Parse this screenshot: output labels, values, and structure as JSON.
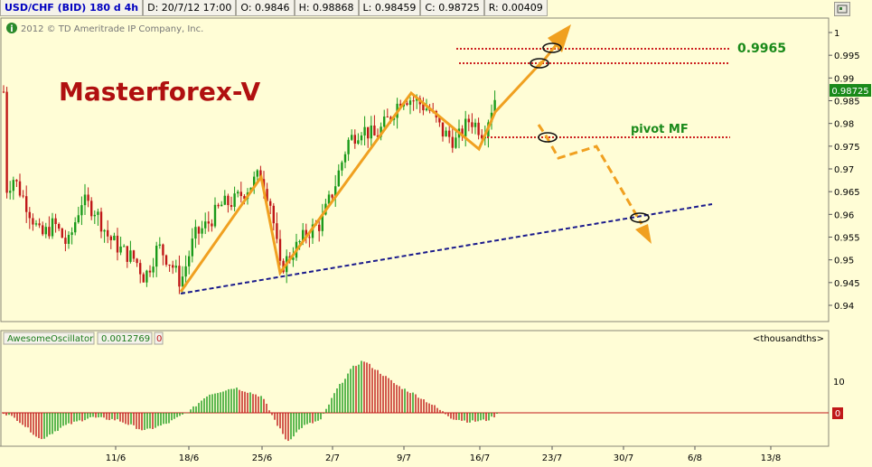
{
  "header": {
    "symbol": "USD/CHF (BID) 180 d 4h",
    "date": "D: 20/7/12 17:00",
    "open": "O: 0.9846",
    "high": "H: 0.98868",
    "low": "L: 0.98459",
    "close": "C: 0.98725",
    "range": "R: 0.00409"
  },
  "copyright": "2012 © TD Ameritrade IP Company, Inc.",
  "info_icon": "info-icon",
  "watermark": "Masterforex-V",
  "level_label": "0.9965",
  "pivot_label": "pivot MF",
  "last_price": "0.98725",
  "colors": {
    "up": "#1a9a1a",
    "down": "#c01818",
    "arrow": "#f0a020",
    "trend": "#1a1a8c",
    "level": "#cc2020",
    "bg": "#fffdd6"
  },
  "chart_data": [
    {
      "type": "candlestick",
      "ylim": [
        0.938,
        1.0045
      ],
      "yticks": [
        "1",
        "0.995",
        "0.99",
        "0.985",
        "0.98",
        "0.975",
        "0.97",
        "0.965",
        "0.96",
        "0.955",
        "0.95",
        "0.945",
        "0.94"
      ],
      "x_labels": [
        "11/6",
        "18/6",
        "25/6",
        "2/7",
        "9/7",
        "16/7",
        "23/7",
        "30/7",
        "6/8",
        "13/8"
      ],
      "key_points": {
        "x": [
          "~18/6",
          "~23/6",
          "~26/6",
          "~7/7",
          "~15/7",
          "~17/7",
          "~23/7"
        ],
        "y": [
          0.943,
          0.969,
          0.948,
          0.988,
          0.975,
          0.984,
          0.998
        ]
      },
      "horizontal_levels": [
        0.9965,
        0.9935,
        0.9773
      ],
      "trend_line": {
        "from": [
          "~18/6",
          0.943
        ],
        "to": [
          "~6/8",
          0.9625
        ]
      }
    },
    {
      "type": "bar",
      "title": "AwesomeOscillator",
      "value": "0.0012769",
      "zero_badge": "0",
      "units": "<thousandths>",
      "y_tick": "10",
      "zero_line_label": "0"
    }
  ]
}
